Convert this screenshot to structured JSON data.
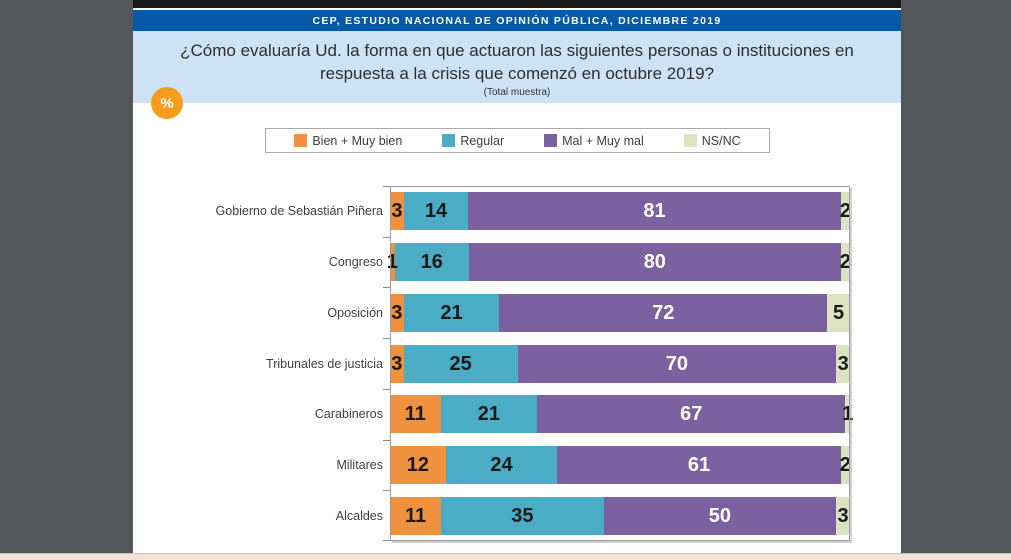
{
  "slide": {
    "banner": "CEP, ESTUDIO NACIONAL DE OPINIÓN PÚBLICA, DICIEMBRE 2019",
    "title": "¿Cómo evaluaría Ud. la forma en que actuaron las siguientes personas o instituciones en respuesta a la crisis que comenzó en octubre 2019?",
    "subtitle": "(Total muestra)",
    "percent_badge": "%"
  },
  "colors": {
    "viewer_background": "#54575A",
    "banner_navy": "#0659A9",
    "header_blue": "#CEE2F5",
    "badge_orange": "#F89C1C",
    "chart_frame": "#9E9E9E",
    "bottom_strip": "#F5E3DA"
  },
  "chart_data": {
    "type": "bar",
    "orientation": "horizontal",
    "stacked": true,
    "unit": "%",
    "xlim": [
      0,
      100
    ],
    "grid": false,
    "legend_position": "top",
    "categories": [
      "Gobierno de Sebastián Piñera",
      "Congreso",
      "Oposición",
      "Tribunales de justicia",
      "Carabineros",
      "Militares",
      "Alcaldes"
    ],
    "series": [
      {
        "name": "Bien + Muy bien",
        "color": "#F0913E",
        "label_color": "#1A1A1A",
        "values": [
          3,
          1,
          3,
          3,
          11,
          12,
          11
        ]
      },
      {
        "name": "Regular",
        "color": "#4AACC5",
        "label_color": "#1A1A1A",
        "values": [
          14,
          16,
          21,
          25,
          21,
          24,
          35
        ]
      },
      {
        "name": "Mal + Muy mal",
        "color": "#7C61A1",
        "label_color": "#FFFFFF",
        "values": [
          81,
          80,
          72,
          70,
          67,
          61,
          50
        ]
      },
      {
        "name": "NS/NC",
        "color": "#DCE3C1",
        "label_color": "#1A1A1A",
        "values": [
          2,
          2,
          5,
          3,
          1,
          2,
          3
        ]
      }
    ]
  }
}
